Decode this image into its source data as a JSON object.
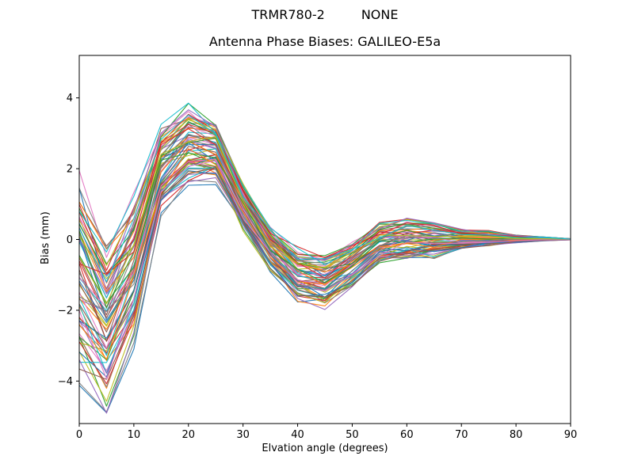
{
  "window": {
    "background": "#ffffff"
  },
  "chart_data": {
    "type": "line",
    "suptitle_parts": [
      "TRMR780-2",
      "NONE"
    ],
    "title": "Antenna Phase Biases: GALILEO-E5a",
    "xlabel": "Elvation angle (degrees)",
    "ylabel": "Bias (mm)",
    "xlim": [
      0,
      90
    ],
    "ylim": [
      -5.2,
      5.2
    ],
    "xticks": [
      0,
      10,
      20,
      30,
      40,
      50,
      60,
      70,
      80,
      90
    ],
    "yticks": [
      -4,
      -2,
      0,
      2,
      4
    ],
    "grid": false,
    "legend": null,
    "description": "Ensemble of ~70 overlapping antenna phase bias curves vs elevation angle. All curves dip to a minimum near 5 deg, peak near 20-25 deg, dip again near 40-45 deg, show a small bump near 60 deg and converge to 0 mm at 90 deg.",
    "x": [
      0,
      5,
      10,
      15,
      20,
      25,
      30,
      35,
      40,
      45,
      50,
      55,
      60,
      65,
      70,
      75,
      80,
      85,
      90
    ],
    "n_lines": 70,
    "band_lower": [
      -3.4,
      -4.5,
      -2.6,
      0.9,
      1.7,
      1.75,
      0.3,
      -0.8,
      -1.7,
      -1.85,
      -1.3,
      -0.6,
      -0.5,
      -0.45,
      -0.25,
      -0.15,
      -0.08,
      -0.04,
      -0.01
    ],
    "band_upper": [
      1.4,
      -0.35,
      0.9,
      3.0,
      3.65,
      3.25,
      1.5,
      0.3,
      -0.35,
      -0.5,
      -0.15,
      0.35,
      0.55,
      0.5,
      0.3,
      0.2,
      0.12,
      0.06,
      0.02
    ],
    "band_mean": [
      -1.0,
      -2.43,
      -0.85,
      1.95,
      2.68,
      2.5,
      0.9,
      -0.25,
      -1.03,
      -1.18,
      -0.73,
      -0.13,
      0.03,
      0.03,
      0.03,
      0.03,
      0.02,
      0.01,
      0.0
    ],
    "palette": [
      "#1f77b4",
      "#ff7f0e",
      "#2ca02c",
      "#d62728",
      "#9467bd",
      "#8c564b",
      "#e377c2",
      "#7f7f7f",
      "#bcbd22",
      "#17becf"
    ],
    "axis_color": "#000000"
  }
}
